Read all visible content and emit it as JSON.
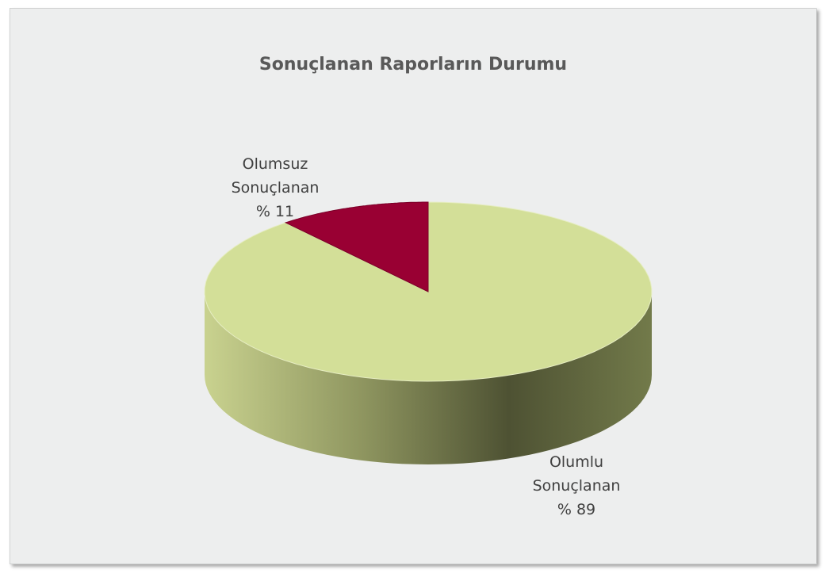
{
  "chart_data": {
    "type": "pie",
    "title": "Sonuçlanan Raporların Durumu",
    "categories": [
      "Olumlu Sonuçlanan",
      "Olumsuz Sonuçlanan"
    ],
    "values": [
      89,
      11
    ],
    "value_labels": [
      "% 89",
      "% 11"
    ],
    "colors": [
      "#d3df98",
      "#990033"
    ]
  }
}
